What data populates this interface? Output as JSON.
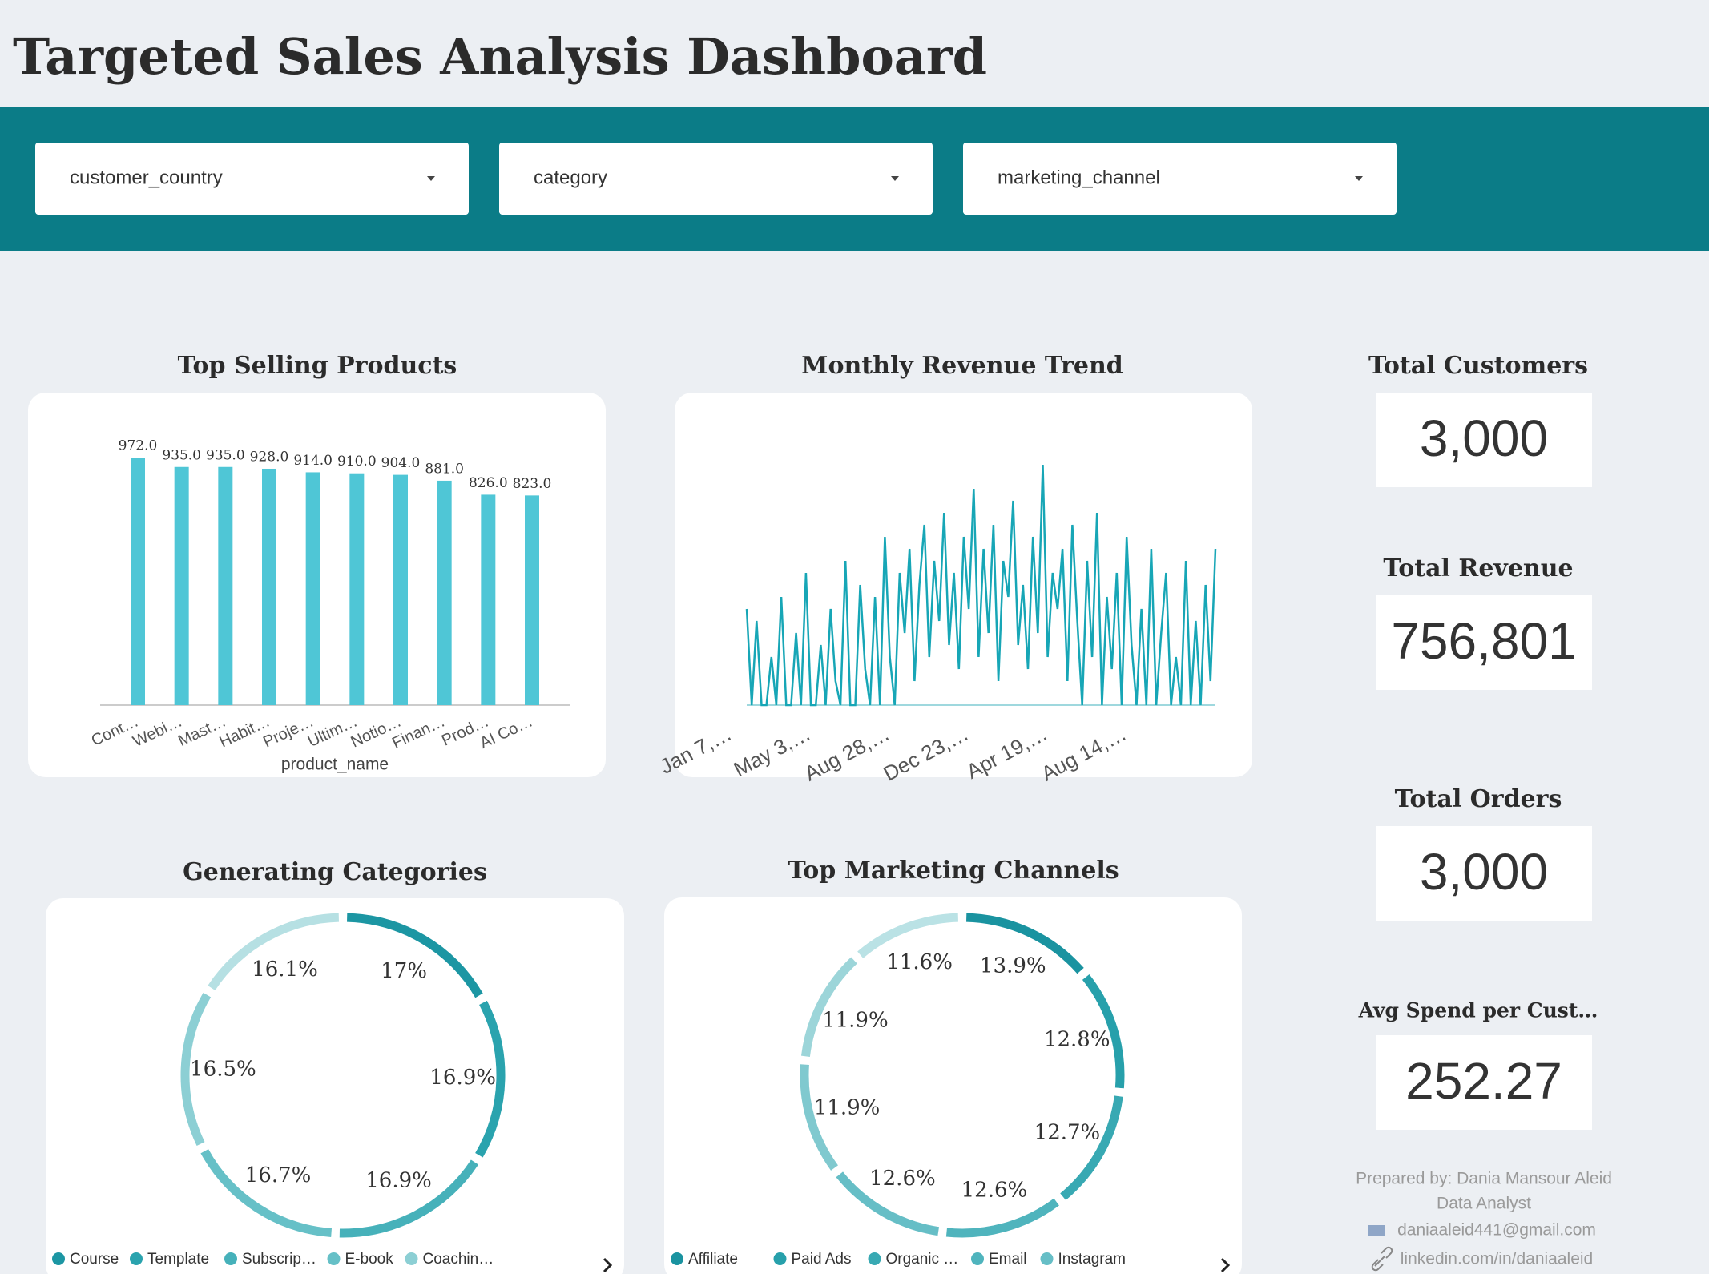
{
  "title": "Targeted Sales Analysis Dashboard",
  "filters": [
    "customer_country",
    "category",
    "marketing_channel"
  ],
  "chart_data": [
    {
      "type": "bar",
      "title": "Top Selling Products",
      "x_label": "product_name",
      "categories": [
        "Cont…",
        "Webi…",
        "Mast…",
        "Habit…",
        "Proje…",
        "Ultim…",
        "Notio…",
        "Finan…",
        "Prod…",
        "AI Co…"
      ],
      "values": [
        972,
        935,
        935,
        928,
        914,
        910,
        904,
        881,
        826,
        823
      ],
      "value_labels": [
        "972.0",
        "935.0",
        "935.0",
        "928.0",
        "914.0",
        "910.0",
        "904.0",
        "881.0",
        "826.0",
        "823.0"
      ],
      "color": "#4fc6d6"
    },
    {
      "type": "line",
      "title": "Monthly Revenue Trend",
      "color": "#17a6b6",
      "categories": [
        "Jan 7,…",
        null,
        null,
        null,
        null,
        null,
        null,
        null,
        null,
        null,
        null,
        null,
        null,
        null,
        null,
        null,
        "May 3,…",
        null,
        null,
        null,
        null,
        null,
        null,
        null,
        null,
        null,
        null,
        null,
        null,
        null,
        null,
        null,
        "Aug 28,…",
        null,
        null,
        null,
        null,
        null,
        null,
        null,
        null,
        null,
        null,
        null,
        null,
        null,
        null,
        null,
        "Dec 23,…",
        null,
        null,
        null,
        null,
        null,
        null,
        null,
        null,
        null,
        null,
        null,
        null,
        null,
        null,
        null,
        "Apr 19,…",
        null,
        null,
        null,
        null,
        null,
        null,
        null,
        null,
        null,
        null,
        null,
        null,
        null,
        null,
        null,
        "Aug 14,…",
        null,
        null,
        null,
        null,
        null,
        null,
        null,
        null,
        null,
        null,
        null,
        null,
        null,
        null,
        null
      ],
      "values": [
        40,
        0,
        35,
        0,
        0,
        20,
        0,
        45,
        0,
        0,
        30,
        0,
        55,
        0,
        0,
        25,
        0,
        40,
        10,
        0,
        60,
        0,
        0,
        50,
        15,
        0,
        45,
        0,
        70,
        20,
        0,
        55,
        30,
        65,
        10,
        50,
        75,
        20,
        60,
        35,
        80,
        25,
        55,
        15,
        70,
        40,
        90,
        20,
        65,
        30,
        75,
        10,
        60,
        45,
        85,
        25,
        50,
        15,
        70,
        30,
        100,
        20,
        55,
        40,
        65,
        10,
        75,
        35,
        0,
        60,
        20,
        80,
        0,
        45,
        15,
        55,
        0,
        70,
        25,
        0,
        40,
        0,
        65,
        0,
        30,
        55,
        0,
        20,
        0,
        60,
        0,
        35,
        0,
        50,
        10,
        65
      ]
    },
    {
      "type": "donut",
      "title": "Generating Categories",
      "categories": [
        "Course",
        "Template",
        "Subscrip…",
        "E-book",
        "Coachin…",
        null
      ],
      "values": [
        17,
        16.9,
        16.9,
        16.7,
        16.5,
        16.1
      ],
      "value_labels": [
        "17%",
        "16.9%",
        "16.9%",
        "16.7%",
        "16.5%",
        "16.1%"
      ],
      "colors": [
        "#1c96a3",
        "#2aa3ae",
        "#46b1ba",
        "#66c0c7",
        "#8ccfd4",
        "#b6e0e3"
      ]
    },
    {
      "type": "donut",
      "title": "Top Marketing Channels",
      "categories": [
        "Affiliate",
        "Paid Ads",
        "Organic …",
        "Email",
        "Instagram",
        null,
        null,
        null
      ],
      "values": [
        13.9,
        12.8,
        12.7,
        12.6,
        12.6,
        11.9,
        11.9,
        11.6
      ],
      "value_labels": [
        "13.9%",
        "12.8%",
        "12.7%",
        "12.6%",
        "12.6%",
        "11.9%",
        "11.9%",
        "11.6%"
      ],
      "colors": [
        "#1a93a0",
        "#27a0ab",
        "#38a9b3",
        "#4fb4bd",
        "#66bec6",
        "#80c9cf",
        "#9cd5d9",
        "#bae2e5"
      ]
    }
  ],
  "kpis": [
    {
      "label": "Total Customers",
      "value": "3,000"
    },
    {
      "label": "Total Revenue",
      "value": "756,801"
    },
    {
      "label": "Total Orders",
      "value": "3,000"
    },
    {
      "label": "Avg Spend per Cust…",
      "value": "252.27"
    }
  ],
  "footer": [
    "Prepared by: Dania Mansour Aleid",
    "Data Analyst",
    "daniaaleid441@gmail.com",
    "linkedin.com/in/daniaaleid"
  ]
}
